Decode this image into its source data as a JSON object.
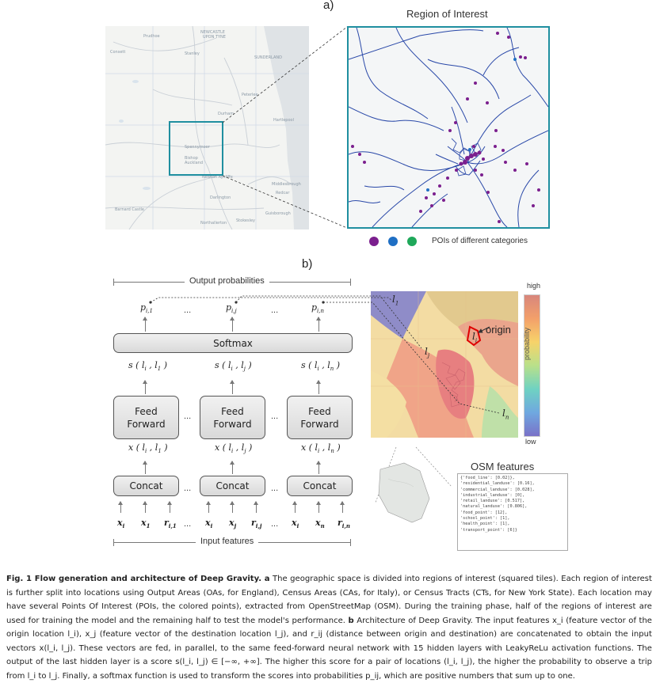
{
  "panel_a": {
    "label": "a)",
    "roi_title": "Region of Interest",
    "legend_label": "POIs of different categories",
    "legend_colors": [
      "#7b1f8e",
      "#1f6fc4",
      "#1fa85a"
    ],
    "map_places": [
      "NEWCASTLE UPON TYNE",
      "SUNDERLAND",
      "Prudhoe",
      "Durham",
      "Spennymoor",
      "Bishop Auckland",
      "Stanley",
      "Consett",
      "Darlington",
      "Middlesbrough",
      "Hartlepool",
      "Peterlee",
      "Newton Aycliffe",
      "Barnard Castle",
      "Stockton-on-Tees",
      "Redcar",
      "Guisborough",
      "Stokesley",
      "Northallerton"
    ]
  },
  "panel_b": {
    "label": "b)",
    "output_label": "Output probabilities",
    "input_label": "Input features",
    "softmax_label": "Softmax",
    "ff_label_1": "Feed",
    "ff_label_2": "Forward",
    "concat_label": "Concat",
    "ellipsis": "...",
    "probs": [
      "p",
      "p",
      "p"
    ],
    "prob_subs": [
      "i,1",
      "i,j",
      "i,n"
    ],
    "scores": [
      "s ( l",
      "s ( l",
      "s ( l"
    ],
    "score_pairs": [
      "i , l 1 )",
      "i , l j )",
      "i , l n )"
    ],
    "xvecs": [
      "x ( l",
      "x ( l",
      "x ( l"
    ],
    "inputs": [
      [
        "x",
        "i"
      ],
      [
        "x",
        "1"
      ],
      [
        "r",
        "i,1"
      ],
      [
        "x",
        "i"
      ],
      [
        "x",
        "j"
      ],
      [
        "r",
        "i,j"
      ],
      [
        "x",
        "i"
      ],
      [
        "x",
        "n"
      ],
      [
        "r",
        "i,n"
      ]
    ],
    "origin_label": "origin",
    "loc_l1": "l",
    "loc_l1_sub": "1",
    "loc_lj_sub": "j",
    "loc_li_sub": "i",
    "loc_ln_sub": "n",
    "colorbar_high": "high",
    "colorbar_low": "low",
    "colorbar_title": "probability",
    "osm_title": "OSM features",
    "osm_lines": [
      "{'food_line': [0.02]},",
      "'residential_landuse': [0.16],",
      "'commercial_landuse': [0.028],",
      "'industrial_landuse': [0],",
      "'retail_landuse': [0.517],",
      "'natural_landuse': [0.806],",
      "'food_point': [12],",
      "'school_point': [1],",
      "'health_point': [1],",
      "'transport_point': [6]}"
    ]
  },
  "caption": {
    "bold": "Fig. 1 Flow generation and architecture of Deep Gravity. a",
    "text": " The geographic space is divided into regions of interest (squared tiles). Each region of interest is further split into locations using Output Areas (OAs, for England), Census Areas (CAs, for Italy), or Census Tracts (CTs, for New York State). Each location may have several Points Of Interest (POIs, the colored points), extracted from OpenStreetMap (OSM). During the training phase, half of the regions of interest are used for training the model and the remaining half to test the model's performance. ",
    "bold2": "b",
    "text2": " Architecture of Deep Gravity. The input features x_i (feature vector of the origin location l_i), x_j (feature vector of the destination location l_j), and r_ij (distance between origin and destination) are concatenated to obtain the input vectors x(l_i, l_j). These vectors are fed, in parallel, to the same feed-forward neural network with 15 hidden layers with LeakyReLu activation functions. The output of the last hidden layer is a score s(l_i, l_j) ∈ [−∞, +∞]. The higher this score for a pair of locations (l_i, l_j), the higher the probability to observe a trip from l_i to l_j. Finally, a softmax function is used to transform the scores into probabilities p_ij, which are positive numbers that sum up to one."
  }
}
